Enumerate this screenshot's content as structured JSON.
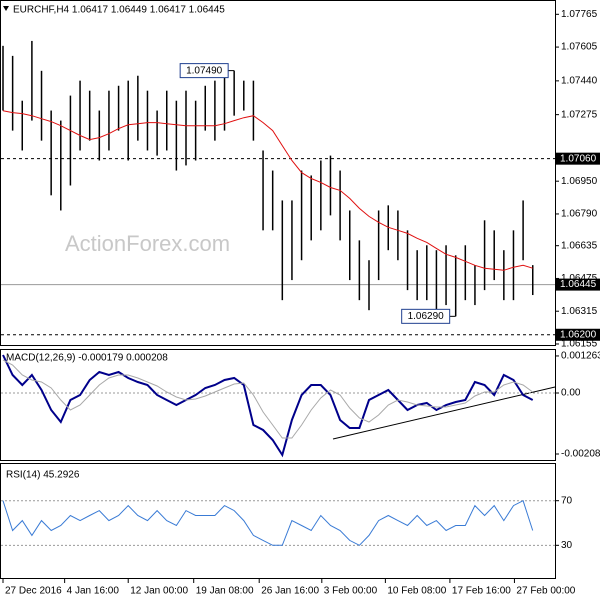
{
  "chart_data": [
    {
      "type": "hilo",
      "title": "EURCHF,H4 1.06417 1.06449 1.06417 1.06445",
      "watermark": "ActionForex.com",
      "xlim": [
        0,
        57
      ],
      "ylim": [
        1.0615,
        1.0783
      ],
      "yticks": [
        1.07765,
        1.07605,
        {
          "value": 1.0744,
          "label": "1.07440"
        },
        1.07275,
        {
          "value": 1.0695,
          "label": "1.06950"
        },
        {
          "value": 1.0679,
          "label": "1.06790"
        },
        1.06635,
        1.06475,
        1.06315,
        1.06155
      ],
      "bar_color": "#000000",
      "high": [
        1.07611,
        1.07562,
        1.07343,
        1.07635,
        1.07489,
        1.07295,
        1.07246,
        1.07368,
        1.07441,
        1.07392,
        1.07295,
        1.07392,
        1.07416,
        1.07441,
        1.07465,
        1.07392,
        1.07295,
        1.07392,
        1.07343,
        1.07392,
        1.07343,
        1.07416,
        1.07441,
        1.07489,
        1.0749,
        1.07441,
        1.07441,
        1.071,
        1.07002,
        1.06856,
        1.06856,
        1.07002,
        1.06978,
        1.07051,
        1.07075,
        1.07002,
        1.06807,
        1.06661,
        1.06564,
        1.06807,
        1.06832,
        1.06807,
        1.0671,
        1.06613,
        1.06637,
        1.06613,
        1.06637,
        1.06588,
        1.06637,
        1.0654,
        1.06759,
        1.0671,
        1.06613,
        1.0671,
        1.06856,
        1.0654
      ],
      "low": [
        1.07295,
        1.07197,
        1.071,
        1.07246,
        1.07148,
        1.06881,
        1.06807,
        1.06929,
        1.071,
        1.07148,
        1.07051,
        1.071,
        1.07197,
        1.07051,
        1.07148,
        1.071,
        1.07075,
        1.071,
        1.07002,
        1.07027,
        1.07051,
        1.07197,
        1.07148,
        1.07197,
        1.0727,
        1.07295,
        1.07148,
        1.0671,
        1.0671,
        1.06369,
        1.06467,
        1.06564,
        1.06661,
        1.0671,
        1.06783,
        1.06661,
        1.06467,
        1.06369,
        1.0632,
        1.06467,
        1.06613,
        1.06564,
        1.06418,
        1.06369,
        1.06369,
        1.0632,
        1.06345,
        1.0629,
        1.06369,
        1.06345,
        1.06418,
        1.06467,
        1.06369,
        1.06369,
        1.06564,
        1.06394
      ],
      "ma_color": "#e01010",
      "ma_values": [
        1.07294,
        1.07285,
        1.0728,
        1.0727,
        1.07255,
        1.07241,
        1.07221,
        1.07197,
        1.07173,
        1.07153,
        1.07163,
        1.07182,
        1.07207,
        1.07226,
        1.07231,
        1.07236,
        1.07236,
        1.07231,
        1.07226,
        1.07221,
        1.07221,
        1.07221,
        1.07221,
        1.07231,
        1.07246,
        1.0726,
        1.0727,
        1.07236,
        1.07197,
        1.07124,
        1.07051,
        1.06992,
        1.06963,
        1.06944,
        1.06919,
        1.06905,
        1.06866,
        1.06817,
        1.06778,
        1.06749,
        1.06725,
        1.0671,
        1.06695,
        1.06671,
        1.06651,
        1.06622,
        1.06593,
        1.06578,
        1.06559,
        1.06539,
        1.06525,
        1.0652,
        1.06515,
        1.0653,
        1.06539,
        1.06525
      ],
      "levels": [
        {
          "value": 1.0706,
          "label": "1.07060",
          "style": "dashed"
        },
        {
          "value": 1.06445,
          "label": "1.06445",
          "style": "solid"
        },
        {
          "value": 1.062,
          "label": "1.06200",
          "style": "dashed"
        }
      ],
      "annotations": [
        {
          "index": 24,
          "value": 1.0749,
          "label": "1.07490"
        },
        {
          "index": 47,
          "value": 1.0629,
          "label": "1.06290"
        }
      ]
    },
    {
      "type": "line",
      "title": "MACD(12,26,9) -0.000179 0.000208",
      "xlim": [
        0,
        57
      ],
      "ylim": [
        -0.002285,
        0.001466
      ],
      "yticks": [
        0.001263,
        {
          "value": 0,
          "label": "0.00"
        },
        -0.00208
      ],
      "zero_line": true,
      "series": [
        {
          "color": "#00008b",
          "width": 2,
          "values": [
            0.001296,
            0.000614,
            0.000273,
            0.000614,
            0.000102,
            -0.00058,
            -0.000989,
            -0.000239,
            -6.8e-05,
            0.000443,
            0.000716,
            0.000614,
            0.000716,
            0.000512,
            0.000375,
            0.000273,
            -6.8e-05,
            -0.000239,
            -0.000409,
            -0.000239,
            -6.8e-05,
            0.000171,
            0.000273,
            0.000443,
            0.000512,
            0.000273,
            -0.001091,
            -0.001262,
            -0.001603,
            -0.002114,
            -0.000921,
            -6.8e-05,
            0.000273,
            0.000273,
            -6.8e-05,
            -0.000921,
            -0.001194,
            -0.001194,
            -0.000239,
            -6.8e-05,
            0.000102,
            -0.000239,
            -0.00058,
            -0.000409,
            -0.000341,
            -0.00058,
            -0.000409,
            -0.000307,
            -0.000239,
            0.000375,
            0.000273,
            -6.8e-05,
            0.000614,
            0.000443,
            -6.8e-05,
            -0.000239
          ]
        },
        {
          "color": "#a9a9a9",
          "width": 1,
          "values": [
            0.001125,
            0.000955,
            0.000614,
            0.000443,
            0.000375,
            0.000171,
            -0.000239,
            -0.00058,
            -0.000409,
            -6.8e-05,
            0.000273,
            0.000512,
            0.000614,
            0.000614,
            0.000512,
            0.000375,
            0.000239,
            3.4e-05,
            -0.000136,
            -0.000239,
            -0.000205,
            -0.000102,
            3.4e-05,
            0.000171,
            0.000307,
            0.000341,
            -6.8e-05,
            -0.000648,
            -0.001091,
            -0.001535,
            -0.001535,
            -0.001091,
            -0.00058,
            -0.000171,
            0.000102,
            -6.8e-05,
            -0.000512,
            -0.000853,
            -0.000989,
            -0.00075,
            -0.000409,
            -0.000239,
            -0.000307,
            -0.000409,
            -0.000443,
            -0.000477,
            -0.000477,
            -0.000409,
            -0.000341,
            -0.000102,
            3.4e-05,
            3.4e-05,
            0.000273,
            0.000375,
            0.000273,
            3.4e-05
          ]
        }
      ]
    },
    {
      "type": "line",
      "title": "RSI(14) 45.2926",
      "xlim": [
        0,
        57
      ],
      "ylim": [
        0.7,
        102.9
      ],
      "yticks": [
        70,
        30
      ],
      "grid": true,
      "xticks": [
        {
          "value": 0,
          "label": "27 Dec 2016"
        },
        {
          "value": 6.4,
          "label": "4 Jan 16:00"
        },
        {
          "value": 13,
          "label": "12 Jan 00:00"
        },
        {
          "value": 19.8,
          "label": "19 Jan 08:00"
        },
        {
          "value": 26.6,
          "label": "26 Jan 16:00"
        },
        {
          "value": 33.1,
          "label": "3 Feb 00:00"
        },
        {
          "value": 39.7,
          "label": "10 Feb 08:00"
        },
        {
          "value": 46.4,
          "label": "17 Feb 16:00"
        },
        {
          "value": 53.1,
          "label": "27 Feb 00:00"
        }
      ],
      "series": [
        {
          "color": "#3a7bd5",
          "width": 1,
          "values": [
            70,
            43.3,
            52.2,
            38.9,
            52.2,
            43.3,
            47.8,
            56.7,
            52.2,
            56.7,
            61.1,
            52.2,
            56.7,
            65.6,
            56.7,
            52.2,
            61.1,
            52.2,
            47.8,
            61.1,
            56.7,
            56.7,
            56.7,
            65.6,
            61.1,
            52.2,
            38.9,
            34.4,
            30,
            30,
            52.2,
            47.8,
            43.3,
            56.7,
            47.8,
            43.3,
            34.4,
            30,
            38.9,
            52.2,
            56.7,
            52.2,
            47.8,
            56.7,
            47.8,
            52.2,
            43.3,
            47.8,
            47.8,
            65.6,
            56.7,
            65.6,
            52.2,
            65.6,
            70,
            43.3
          ]
        }
      ]
    }
  ]
}
